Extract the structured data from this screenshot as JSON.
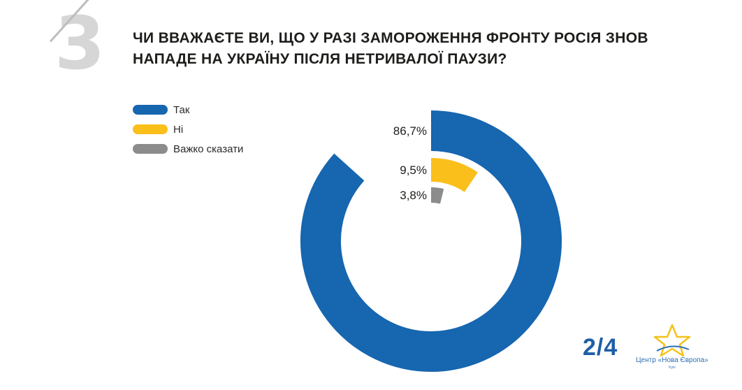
{
  "question_number": "3",
  "title_line1": "ЧИ ВВАЖАЄТЕ ВИ, ЩО У РАЗІ ЗАМОРОЖЕННЯ ФРОНТУ РОСІЯ ЗНОВ",
  "title_line2": "НАПАДЕ НА УКРАЇНУ ПІСЛЯ НЕТРИВАЛОЇ ПАУЗИ?",
  "page_indicator": "2/4",
  "logo": {
    "name": "Центр «Нова Європа»",
    "city": "Kyiv",
    "icon": "star-icon"
  },
  "chart_data": {
    "type": "pie",
    "style": "radial-arcs",
    "legend_position": "top-left",
    "slices": [
      {
        "label": "Так",
        "value": 86.7,
        "display": "86,7%",
        "color": "#1666b0"
      },
      {
        "label": "Ні",
        "value": 9.5,
        "display": "9,5%",
        "color": "#fbbf1c"
      },
      {
        "label": "Важко сказати",
        "value": 3.8,
        "display": "3,8%",
        "color": "#8c8c8c"
      }
    ]
  }
}
